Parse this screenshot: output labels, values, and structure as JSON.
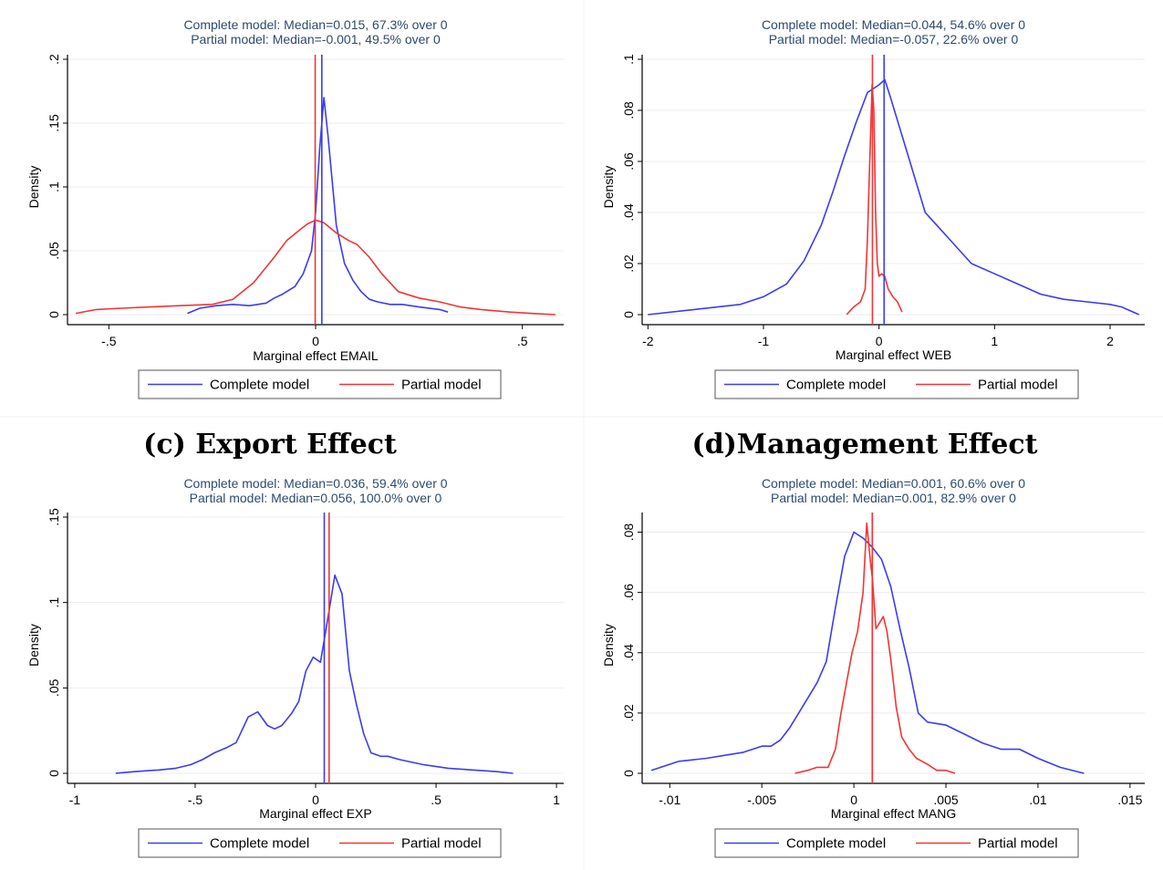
{
  "colors": {
    "complete": "#3b3bf5",
    "partial": "#f23535",
    "grid": "#e8ecf0",
    "axis": "#000000",
    "subtitle": "#2d4a6e"
  },
  "captions": [
    {
      "text": ""
    },
    {
      "text": ""
    },
    {
      "text": "(c) Export Effect"
    },
    {
      "text": "(d)Management Effect"
    }
  ],
  "chart_data": [
    {
      "type": "line",
      "subtitle_lines": [
        "Complete model: Median=0.015, 67.3% over 0",
        "Partial model: Median=-0.001, 49.5% over 0"
      ],
      "xlabel": "Marginal effect EMAIL",
      "ylabel": "Density",
      "xlim": [
        -0.6,
        0.6
      ],
      "ylim": [
        0,
        0.2
      ],
      "xticks": [
        {
          "v": -0.5,
          "label": "-.5"
        },
        {
          "v": 0,
          "label": "0"
        },
        {
          "v": 0.5,
          "label": ".5"
        }
      ],
      "yticks": [
        {
          "v": 0,
          "label": "0"
        },
        {
          "v": 0.05,
          "label": ".05"
        },
        {
          "v": 0.1,
          "label": ".1"
        },
        {
          "v": 0.15,
          "label": ".15"
        },
        {
          "v": 0.2,
          "label": ".2"
        }
      ],
      "grid": true,
      "legend": "bottom",
      "series": [
        {
          "name": "Complete model",
          "color_key": "complete",
          "x": [
            -0.31,
            -0.28,
            -0.24,
            -0.2,
            -0.16,
            -0.12,
            -0.1,
            -0.08,
            -0.05,
            -0.03,
            -0.01,
            0.0,
            0.01,
            0.02,
            0.03,
            0.05,
            0.07,
            0.09,
            0.11,
            0.13,
            0.15,
            0.18,
            0.21,
            0.25,
            0.3,
            0.32
          ],
          "y": [
            0.001,
            0.005,
            0.007,
            0.008,
            0.007,
            0.009,
            0.013,
            0.016,
            0.022,
            0.032,
            0.05,
            0.08,
            0.13,
            0.17,
            0.14,
            0.07,
            0.04,
            0.027,
            0.018,
            0.012,
            0.01,
            0.008,
            0.008,
            0.006,
            0.004,
            0.002
          ]
        },
        {
          "name": "Partial model",
          "color_key": "partial",
          "x": [
            -0.58,
            -0.53,
            -0.47,
            -0.4,
            -0.33,
            -0.25,
            -0.2,
            -0.15,
            -0.1,
            -0.07,
            -0.04,
            -0.02,
            0.0,
            0.02,
            0.05,
            0.08,
            0.1,
            0.13,
            0.16,
            0.2,
            0.25,
            0.3,
            0.35,
            0.4,
            0.47,
            0.52,
            0.58
          ],
          "y": [
            0.001,
            0.004,
            0.005,
            0.006,
            0.007,
            0.008,
            0.012,
            0.025,
            0.045,
            0.058,
            0.066,
            0.071,
            0.074,
            0.072,
            0.064,
            0.058,
            0.055,
            0.045,
            0.032,
            0.018,
            0.013,
            0.01,
            0.006,
            0.004,
            0.002,
            0.001,
            0.0
          ]
        }
      ],
      "vlines": [
        {
          "x": 0.015,
          "color_key": "complete"
        },
        {
          "x": -0.001,
          "color_key": "partial"
        }
      ]
    },
    {
      "type": "line",
      "subtitle_lines": [
        "Complete model: Median=0.044, 54.6% over 0",
        "Partial model: Median=-0.057, 22.6% over 0"
      ],
      "xlabel": "Marginal effect WEB",
      "ylabel": "Density",
      "xlim": [
        -2.05,
        2.3
      ],
      "ylim": [
        0,
        0.1
      ],
      "xticks": [
        {
          "v": -2,
          "label": "-2"
        },
        {
          "v": -1,
          "label": "-1"
        },
        {
          "v": 0,
          "label": "0"
        },
        {
          "v": 1,
          "label": "1"
        },
        {
          "v": 2,
          "label": "2"
        }
      ],
      "yticks": [
        {
          "v": 0,
          "label": "0"
        },
        {
          "v": 0.02,
          "label": ".02"
        },
        {
          "v": 0.04,
          "label": ".04"
        },
        {
          "v": 0.06,
          "label": ".06"
        },
        {
          "v": 0.08,
          "label": ".08"
        },
        {
          "v": 0.1,
          "label": ".1"
        }
      ],
      "grid": true,
      "legend": "bottom",
      "series": [
        {
          "name": "Complete model",
          "color_key": "complete",
          "x": [
            -2.0,
            -1.6,
            -1.2,
            -1.0,
            -0.8,
            -0.65,
            -0.5,
            -0.4,
            -0.3,
            -0.2,
            -0.1,
            0.0,
            0.05,
            0.1,
            0.2,
            0.3,
            0.4,
            0.6,
            0.8,
            1.0,
            1.2,
            1.4,
            1.6,
            1.8,
            2.0,
            2.1,
            2.25
          ],
          "y": [
            0.0,
            0.002,
            0.004,
            0.007,
            0.012,
            0.021,
            0.035,
            0.048,
            0.062,
            0.075,
            0.087,
            0.09,
            0.092,
            0.085,
            0.07,
            0.055,
            0.04,
            0.03,
            0.02,
            0.016,
            0.012,
            0.008,
            0.006,
            0.005,
            0.004,
            0.003,
            0.0
          ]
        },
        {
          "name": "Partial model",
          "color_key": "partial",
          "x": [
            -0.28,
            -0.22,
            -0.16,
            -0.12,
            -0.1,
            -0.08,
            -0.06,
            -0.045,
            -0.03,
            -0.015,
            0.0,
            0.02,
            0.05,
            0.08,
            0.12,
            0.16,
            0.2
          ],
          "y": [
            0.0,
            0.003,
            0.005,
            0.01,
            0.03,
            0.06,
            0.09,
            0.08,
            0.04,
            0.02,
            0.015,
            0.016,
            0.015,
            0.01,
            0.007,
            0.005,
            0.001
          ]
        }
      ],
      "vlines": [
        {
          "x": 0.044,
          "color_key": "complete"
        },
        {
          "x": -0.057,
          "color_key": "partial"
        }
      ]
    },
    {
      "type": "line",
      "subtitle_lines": [
        "Complete model: Median=0.036, 59.4% over 0",
        "Partial model: Median=0.056, 100.0% over 0"
      ],
      "xlabel": "Marginal effect EXP",
      "ylabel": "Density",
      "xlim": [
        -1.03,
        1.03
      ],
      "ylim": [
        0,
        0.15
      ],
      "xticks": [
        {
          "v": -1,
          "label": "-1"
        },
        {
          "v": -0.5,
          "label": "-.5"
        },
        {
          "v": 0,
          "label": "0"
        },
        {
          "v": 0.5,
          "label": ".5"
        },
        {
          "v": 1,
          "label": "1"
        }
      ],
      "yticks": [
        {
          "v": 0,
          "label": "0"
        },
        {
          "v": 0.05,
          "label": ".05"
        },
        {
          "v": 0.1,
          "label": ".1"
        },
        {
          "v": 0.15,
          "label": ".15"
        }
      ],
      "grid": true,
      "legend": "bottom",
      "series": [
        {
          "name": "Complete model",
          "color_key": "complete",
          "x": [
            -0.83,
            -0.75,
            -0.65,
            -0.58,
            -0.52,
            -0.47,
            -0.42,
            -0.37,
            -0.33,
            -0.28,
            -0.24,
            -0.2,
            -0.17,
            -0.14,
            -0.1,
            -0.07,
            -0.04,
            -0.01,
            0.02,
            0.05,
            0.08,
            0.11,
            0.14,
            0.17,
            0.2,
            0.23,
            0.27,
            0.3,
            0.35,
            0.45,
            0.55,
            0.65,
            0.75,
            0.82
          ],
          "y": [
            0.0,
            0.001,
            0.002,
            0.003,
            0.005,
            0.008,
            0.012,
            0.015,
            0.018,
            0.033,
            0.036,
            0.028,
            0.026,
            0.028,
            0.035,
            0.042,
            0.06,
            0.068,
            0.065,
            0.09,
            0.116,
            0.105,
            0.06,
            0.04,
            0.023,
            0.012,
            0.01,
            0.01,
            0.008,
            0.005,
            0.003,
            0.002,
            0.001,
            0.0
          ]
        }
      ],
      "vlines": [
        {
          "x": 0.036,
          "color_key": "complete"
        },
        {
          "x": 0.056,
          "color_key": "partial"
        }
      ]
    },
    {
      "type": "line",
      "subtitle_lines": [
        "Complete model: Median=0.001, 60.6% over 0",
        "Partial model: Median=0.001, 82.9% over 0"
      ],
      "xlabel": "Marginal effect MANG",
      "ylabel": "Density",
      "xlim": [
        -0.0115,
        0.0158
      ],
      "ylim": [
        0,
        0.085
      ],
      "xticks": [
        {
          "v": -0.01,
          "label": "-.01"
        },
        {
          "v": -0.005,
          "label": "-.005"
        },
        {
          "v": 0,
          "label": "0"
        },
        {
          "v": 0.005,
          "label": ".005"
        },
        {
          "v": 0.01,
          "label": ".01"
        },
        {
          "v": 0.015,
          "label": ".015"
        }
      ],
      "yticks": [
        {
          "v": 0,
          "label": "0"
        },
        {
          "v": 0.02,
          "label": ".02"
        },
        {
          "v": 0.04,
          "label": ".04"
        },
        {
          "v": 0.06,
          "label": ".06"
        },
        {
          "v": 0.08,
          "label": ".08"
        }
      ],
      "grid": true,
      "legend": "bottom",
      "series": [
        {
          "name": "Complete model",
          "color_key": "complete",
          "x": [
            -0.011,
            -0.0095,
            -0.008,
            -0.007,
            -0.006,
            -0.005,
            -0.0045,
            -0.004,
            -0.0035,
            -0.003,
            -0.0025,
            -0.002,
            -0.0015,
            -0.001,
            -0.0005,
            0.0,
            0.0005,
            0.001,
            0.0015,
            0.002,
            0.0025,
            0.003,
            0.0035,
            0.004,
            0.005,
            0.006,
            0.007,
            0.008,
            0.009,
            0.01,
            0.0112,
            0.0125
          ],
          "y": [
            0.001,
            0.004,
            0.005,
            0.006,
            0.007,
            0.009,
            0.009,
            0.011,
            0.015,
            0.02,
            0.025,
            0.03,
            0.037,
            0.055,
            0.072,
            0.08,
            0.078,
            0.075,
            0.071,
            0.062,
            0.048,
            0.035,
            0.02,
            0.017,
            0.016,
            0.013,
            0.01,
            0.008,
            0.008,
            0.005,
            0.002,
            0.0
          ]
        },
        {
          "name": "Partial model",
          "color_key": "partial",
          "x": [
            -0.0032,
            -0.0025,
            -0.002,
            -0.0017,
            -0.0014,
            -0.001,
            -0.0007,
            -0.0004,
            -0.0001,
            0.0002,
            0.0005,
            0.0007,
            0.0009,
            0.001,
            0.0012,
            0.0014,
            0.0016,
            0.0018,
            0.002,
            0.0023,
            0.0026,
            0.003,
            0.0034,
            0.004,
            0.0045,
            0.005,
            0.0055
          ],
          "y": [
            0.0,
            0.001,
            0.002,
            0.002,
            0.002,
            0.008,
            0.02,
            0.03,
            0.04,
            0.047,
            0.06,
            0.083,
            0.07,
            0.065,
            0.048,
            0.05,
            0.052,
            0.047,
            0.038,
            0.022,
            0.012,
            0.008,
            0.005,
            0.003,
            0.001,
            0.001,
            0.0
          ]
        }
      ],
      "vlines": [
        {
          "x": 0.001,
          "color_key": "complete"
        },
        {
          "x": 0.001,
          "color_key": "partial"
        }
      ]
    }
  ]
}
